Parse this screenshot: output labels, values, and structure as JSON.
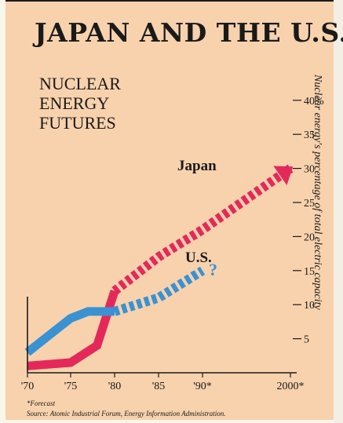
{
  "title": "JAPAN AND THE U.S.",
  "subtitle": "NUCLEAR\nENERGY\nFUTURES",
  "footnote": "*Forecast",
  "source": "Source: Atomic Industrial Forum, Energy Information Administration.",
  "colors": {
    "japan": "#e4295a",
    "us": "#3a92d2",
    "background": "#f8d2ad",
    "ink": "#1a1a1a"
  },
  "chart_data": {
    "type": "line",
    "title": "JAPAN AND THE U.S.",
    "subtitle": "NUCLEAR ENERGY FUTURES",
    "xlabel": "",
    "ylabel": "Nuclear energy's percentage of total electric capacity",
    "x_ticks": [
      "'70",
      "'75",
      "'80",
      "'85",
      "'90*",
      "2000*"
    ],
    "y_ticks": [
      "5",
      "10",
      "15",
      "20",
      "25",
      "30",
      "35",
      "40%"
    ],
    "y_tick_values": [
      5,
      10,
      15,
      20,
      25,
      30,
      35,
      40
    ],
    "ylim": [
      0,
      40
    ],
    "grid": false,
    "series": [
      {
        "name": "Japan",
        "color": "#e4295a",
        "actual": [
          [
            1970,
            1
          ],
          [
            1975,
            1.5
          ],
          [
            1978,
            4
          ],
          [
            1979,
            8
          ],
          [
            1980,
            12
          ]
        ],
        "forecast": [
          [
            1980,
            12
          ],
          [
            1985,
            17
          ],
          [
            1990,
            21
          ],
          [
            2000,
            30
          ]
        ],
        "end_label": ""
      },
      {
        "name": "U.S.",
        "color": "#3a92d2",
        "actual": [
          [
            1970,
            3
          ],
          [
            1972,
            5
          ],
          [
            1975,
            8
          ],
          [
            1977,
            9
          ],
          [
            1980,
            9
          ]
        ],
        "forecast": [
          [
            1980,
            9
          ],
          [
            1985,
            11
          ],
          [
            1990,
            15
          ]
        ],
        "end_label": "?"
      }
    ]
  }
}
